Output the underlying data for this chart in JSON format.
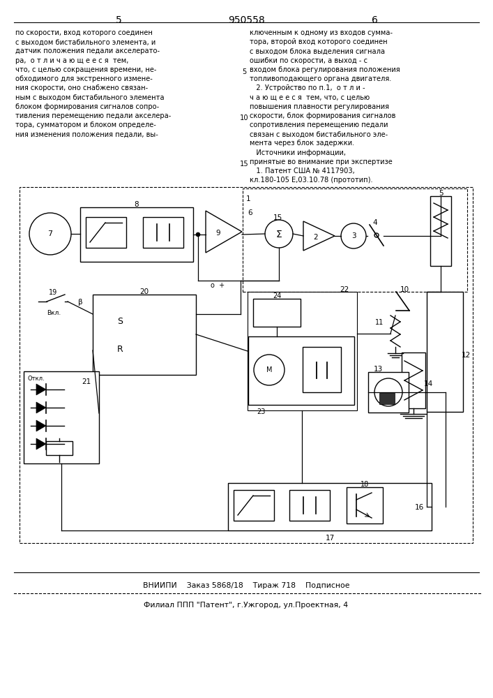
{
  "page_number_left": "5",
  "page_number_center": "950558",
  "page_number_right": "6",
  "left_text": [
    "по скорости, вход которого соединен",
    "с выходом бистабильного элемента, и",
    "датчик положения педали акселерато-",
    "ра,  о т л и ч а ю щ е е с я  тем,",
    "что, с целью сокращения времени, не-",
    "обходимого для экстренного измене-",
    "ния скорости, оно снабжено связан-",
    "ным с выходом бистабильного элемента",
    "блоком формирования сигналов сопро-",
    "тивления перемещению педали акселера-",
    "тора, сумматором и блоком определе-",
    "ния изменения положения педали, вы-"
  ],
  "right_text": [
    "ключенным к одному из входов сумма-",
    "тора, второй вход которого соединен",
    "с выходом блока выделения сигнала",
    "ошибки по скорости, а выход - с",
    "входом блока регулирования положения",
    "топливоподающего органа двигателя.",
    "   2. Устройство по п.1,  о т л и -",
    "ч а ю щ е е с я  тем, что, с целью",
    "повышения плавности регулирования",
    "скорости, блок формирования сигналов",
    "сопротивления перемещению педали",
    "связан с выходом бистабильного эле-",
    "мента через блок задержки.",
    "   Источники информации,",
    "принятые во внимание при экспертизе",
    "   1. Патент США № 4117903,",
    "кл.180-105 Е,03.10.78 (прототип)."
  ],
  "line_number_5": "5",
  "line_number_10": "10",
  "line_number_15": "15",
  "footer_line1": "ВНИИПИ    Заказ 5868/18    Тираж 718    Подписное",
  "footer_line2": "Филиал ППП \"Патент\", г.Ужгород, ул.Проектная, 4",
  "bg_color": "#ffffff",
  "text_color": "#000000"
}
